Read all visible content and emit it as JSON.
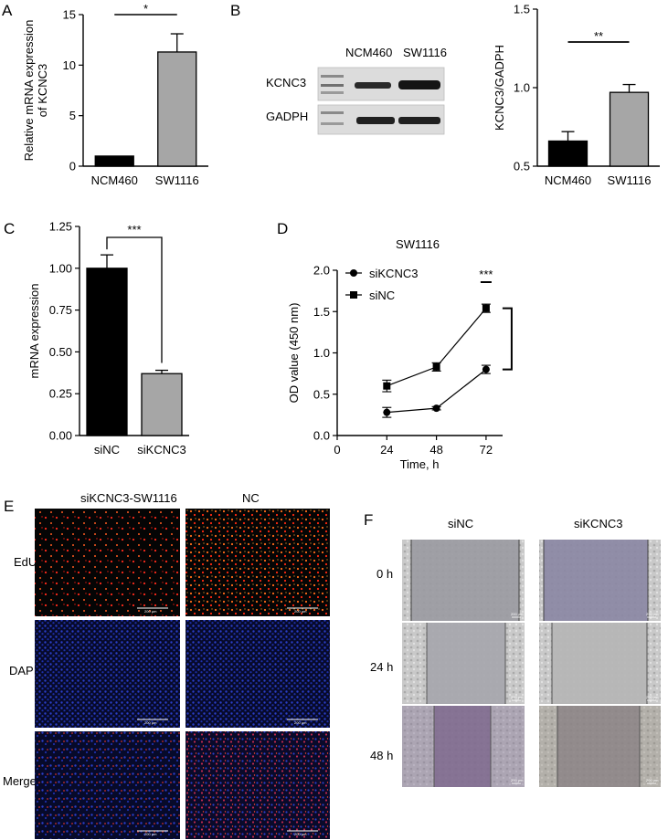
{
  "panels": {
    "A": "A",
    "B": "B",
    "C": "C",
    "D": "D",
    "E": "E",
    "F": "F"
  },
  "chart_data": [
    {
      "id": "A",
      "type": "bar",
      "categories": [
        "NCM460",
        "SW1116"
      ],
      "values": [
        1.0,
        11.3
      ],
      "errors": [
        0.0,
        1.8
      ],
      "colors": [
        "#000000",
        "#a6a6a6"
      ],
      "ylabel": "Relative mRNA expression of KCNC3",
      "ylabel_lines": [
        "Relative mRNA expression",
        "of KCNC3"
      ],
      "ylim": [
        0,
        15
      ],
      "yticks": [
        0,
        5,
        10,
        15
      ],
      "significance": "*"
    },
    {
      "id": "B",
      "type": "bar",
      "categories": [
        "NCM460",
        "SW1116"
      ],
      "values": [
        0.66,
        0.97
      ],
      "errors": [
        0.06,
        0.05
      ],
      "colors": [
        "#000000",
        "#a6a6a6"
      ],
      "ylabel": "KCNC3/GADPH",
      "ylim": [
        0.5,
        1.5
      ],
      "yticks": [
        "0.5",
        "1.0",
        "1.5"
      ],
      "significance": "**"
    },
    {
      "id": "C",
      "type": "bar",
      "categories": [
        "siNC",
        "siKCNC3"
      ],
      "values": [
        1.0,
        0.37
      ],
      "errors": [
        0.08,
        0.02
      ],
      "colors": [
        "#000000",
        "#a6a6a6"
      ],
      "ylabel": "mRNA expression",
      "ylim": [
        0,
        1.25
      ],
      "yticks": [
        "0.00",
        "0.25",
        "0.50",
        "0.75",
        "1.00",
        "1.25"
      ],
      "significance": "***"
    },
    {
      "id": "D",
      "type": "line",
      "title": "SW1116",
      "xlabel": "Time, h",
      "ylabel": "OD value (450 nm)",
      "xlim": [
        0,
        80
      ],
      "xticks": [
        0,
        24,
        48,
        72
      ],
      "ylim": [
        0,
        2.0
      ],
      "yticks": [
        "0.0",
        "0.5",
        "1.0",
        "1.5",
        "2.0"
      ],
      "x": [
        24,
        48,
        72
      ],
      "series": [
        {
          "name": "siKCNC3",
          "marker": "circle",
          "values": [
            0.28,
            0.33,
            0.8
          ],
          "errors": [
            0.06,
            0.02,
            0.05
          ]
        },
        {
          "name": "siNC",
          "marker": "square",
          "values": [
            0.6,
            0.83,
            1.54
          ],
          "errors": [
            0.07,
            0.05,
            0.05
          ]
        }
      ],
      "legend_position": "top-left",
      "significance": "***"
    }
  ],
  "blot": {
    "lane_labels": [
      "NCM460",
      "SW1116"
    ],
    "row_labels": [
      "KCNC3",
      "GADPH"
    ]
  },
  "edu": {
    "columns": [
      "siKCNC3-SW1116",
      "NC"
    ],
    "rows": [
      "EdU",
      "DAPI",
      "Merge"
    ],
    "scale_label": "200 µm"
  },
  "wound": {
    "columns": [
      "siNC",
      "siKCNC3"
    ],
    "rows": [
      "0 h",
      "24 h",
      "48 h"
    ],
    "scale_label": "200 µm"
  }
}
